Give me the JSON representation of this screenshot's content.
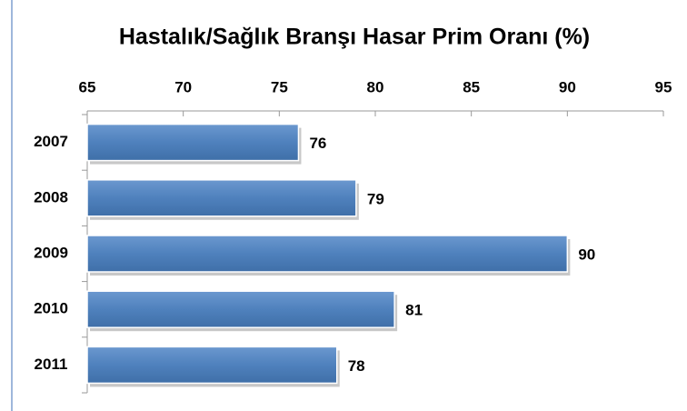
{
  "chart_data": {
    "type": "bar",
    "orientation": "horizontal",
    "title": "Hastalık/Sağlık Branşı Hasar Prim Oranı (%)",
    "categories": [
      "2007",
      "2008",
      "2009",
      "2010",
      "2011"
    ],
    "values": [
      76,
      79,
      90,
      81,
      78
    ],
    "color": "#4f81bd",
    "xlim": [
      65,
      95
    ],
    "xticks": [
      65,
      70,
      75,
      80,
      85,
      90,
      95
    ]
  }
}
